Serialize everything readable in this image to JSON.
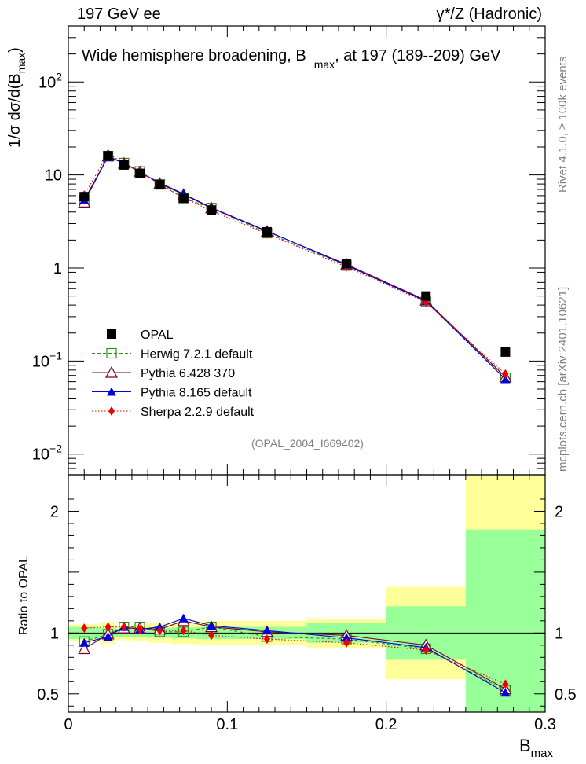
{
  "header": {
    "left": "197 GeV ee",
    "right": "γ*/Z (Hadronic)"
  },
  "side_text": {
    "rivet": "Rivet 4.1.0, ≥ 100k events",
    "mcplots": "mcplots.cern.ch [arXiv:2401.10621]"
  },
  "chart_data": {
    "type": "line",
    "title": "Wide hemisphere broadening, B_max, at 197 (189--209) GeV",
    "title_parts": {
      "pre": "Wide hemisphere broadening, B",
      "sub": "max",
      "post": ", at 197 (189--209) GeV"
    },
    "ylabel_parts": {
      "pre": "1/σ  dσ/d(B",
      "sub": "max",
      "post": ")"
    },
    "xlabel_parts": {
      "main": "B",
      "sub": "max"
    },
    "ratio_ylabel": "Ratio to OPAL",
    "watermark": "(OPAL_2004_I669402)",
    "xlim": [
      0,
      0.3
    ],
    "ylim": [
      0.006,
      400
    ],
    "ratio_ylim": [
      0.35,
      2.3
    ],
    "yscale": "log",
    "x_ticks": [
      {
        "v": 0,
        "label": "0"
      },
      {
        "v": 0.1,
        "label": "0.1"
      },
      {
        "v": 0.2,
        "label": "0.2"
      },
      {
        "v": 0.3,
        "label": "0.3"
      }
    ],
    "y_ticks": [
      {
        "v": 0.01,
        "base": "10",
        "exp": "−2"
      },
      {
        "v": 0.1,
        "base": "10",
        "exp": "−1"
      },
      {
        "v": 1,
        "base": "1",
        "exp": ""
      },
      {
        "v": 10,
        "base": "10",
        "exp": ""
      },
      {
        "v": 100,
        "base": "10",
        "exp": "2"
      }
    ],
    "ratio_ticks": [
      {
        "v": 0.5,
        "label": "0.5"
      },
      {
        "v": 1,
        "label": "1"
      },
      {
        "v": 2,
        "label": "2"
      }
    ],
    "bin_edges": [
      0.0,
      0.02,
      0.03,
      0.04,
      0.05,
      0.065,
      0.08,
      0.1,
      0.15,
      0.2,
      0.25,
      0.3
    ],
    "x": [
      0.01,
      0.025,
      0.035,
      0.045,
      0.0575,
      0.0725,
      0.09,
      0.125,
      0.175,
      0.225,
      0.275
    ],
    "data": {
      "name": "OPAL",
      "values": [
        5.85,
        16.1,
        12.8,
        10.4,
        7.85,
        5.6,
        4.2,
        2.45,
        1.12,
        0.5,
        0.125
      ],
      "stat_band": [
        0.05,
        0.04,
        0.035,
        0.035,
        0.04,
        0.045,
        0.05,
        0.05,
        0.08,
        0.22,
        0.85
      ],
      "total_band": [
        0.07,
        0.09,
        0.06,
        0.07,
        0.08,
        0.09,
        0.1,
        0.1,
        0.12,
        0.38,
        1.35
      ]
    },
    "series": [
      {
        "name": "Herwig 7.2.1 default",
        "color": "#2e8b1e",
        "line": "dashed",
        "marker": "open-square",
        "ratio": [
          0.93,
          0.99,
          1.05,
          1.05,
          1.01,
          1.01,
          1.05,
          0.97,
          0.95,
          0.87,
          0.53
        ]
      },
      {
        "name": "Pythia 6.428 370",
        "color": "#800020",
        "line": "solid",
        "marker": "open-triangle",
        "ratio": [
          0.87,
          0.99,
          1.04,
          1.04,
          1.03,
          1.1,
          1.05,
          1.01,
          0.98,
          0.9,
          0.54
        ]
      },
      {
        "name": "Pythia 8.165 default",
        "color": "#0000dd",
        "line": "solid",
        "marker": "filled-triangle",
        "ratio": [
          0.92,
          0.97,
          1.05,
          1.03,
          1.05,
          1.12,
          1.06,
          1.02,
          0.96,
          0.88,
          0.51
        ]
      },
      {
        "name": "Sherpa 2.2.9 default",
        "color": "#ee0000",
        "line": "dotted",
        "marker": "filled-diamond",
        "ratio": [
          1.04,
          1.05,
          1.05,
          1.03,
          1.02,
          1.02,
          0.98,
          0.95,
          0.92,
          0.86,
          0.58
        ]
      }
    ]
  },
  "colors": {
    "band_outer": "#ffff99",
    "band_inner": "#99ff99",
    "data": "#000000"
  }
}
